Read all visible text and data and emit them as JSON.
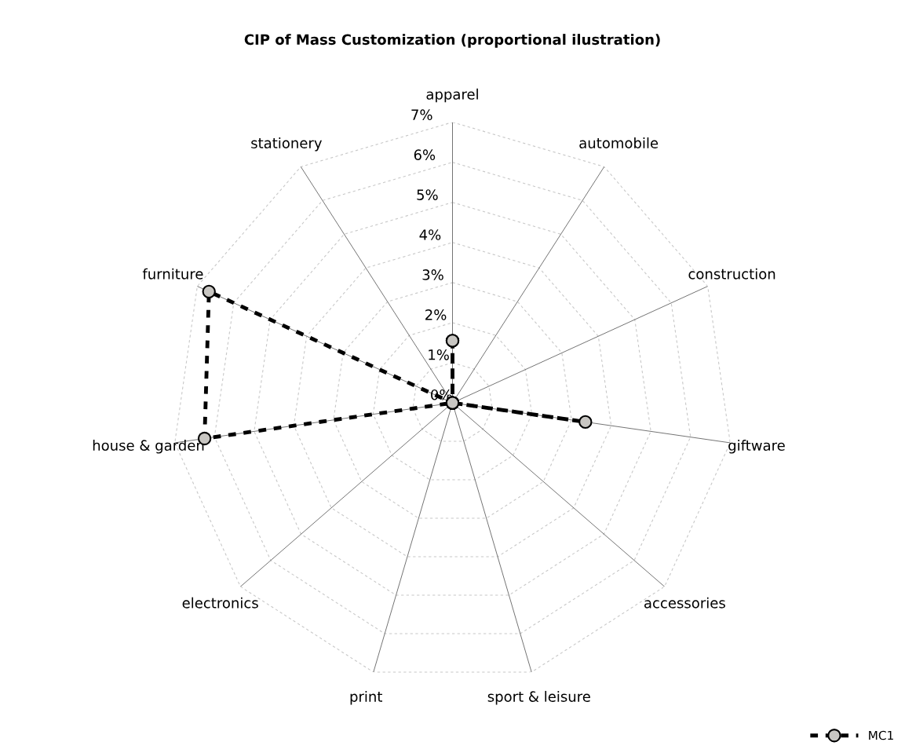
{
  "chart_data": {
    "type": "radar",
    "title": "CIP of Mass Customization (proportional ilustration)",
    "categories": [
      "apparel",
      "automobile",
      "construction",
      "giftware",
      "accessories",
      "sport & leisure",
      "print",
      "electronics",
      "house & garden",
      "furniture",
      "stationery"
    ],
    "series": [
      {
        "name": "MC1",
        "color": "#000000",
        "values": [
          1.55,
          0,
          0,
          3.35,
          0,
          0,
          0,
          0,
          6.25,
          6.68,
          0
        ]
      }
    ],
    "ylim": [
      0,
      7
    ],
    "yticks": [
      {
        "value": 0,
        "label": "0%"
      },
      {
        "value": 1,
        "label": "1%"
      },
      {
        "value": 2,
        "label": "2%"
      },
      {
        "value": 3,
        "label": "3%"
      },
      {
        "value": 4,
        "label": "4%"
      },
      {
        "value": 5,
        "label": "5%"
      },
      {
        "value": 6,
        "label": "6%"
      },
      {
        "value": 7,
        "label": "7%"
      }
    ],
    "grid": true,
    "legend": "bottom right",
    "marker": "circle",
    "line_style": "dashed"
  }
}
